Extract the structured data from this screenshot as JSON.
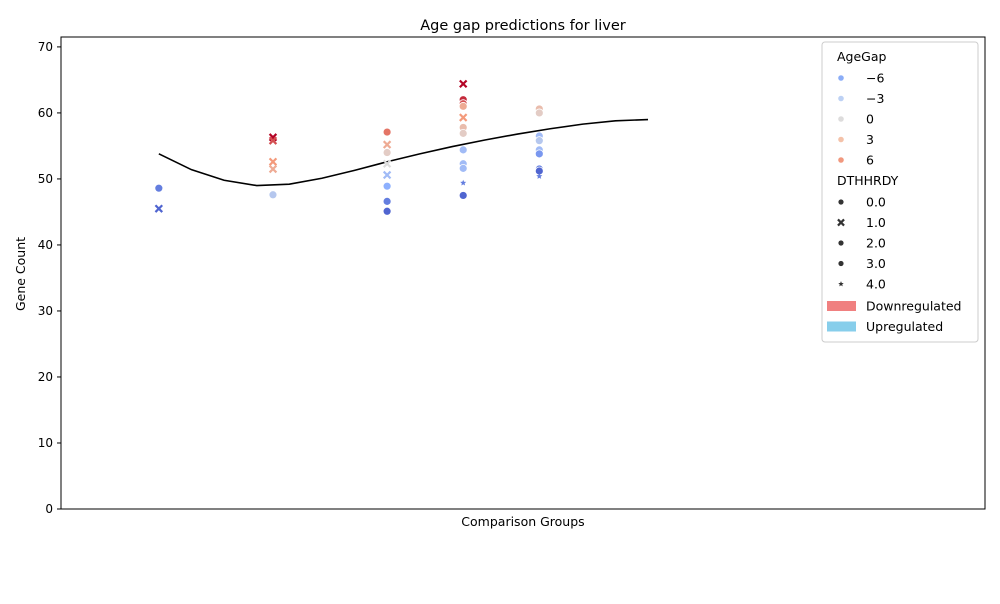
{
  "chart_data": {
    "type": "scatter",
    "title": "Age gap predictions for liver",
    "xlabel": "Comparison Groups",
    "ylabel": "Gene Count",
    "xlim": [
      0,
      8.5
    ],
    "ylim": [
      0,
      71.5
    ],
    "yticks": [
      0,
      10,
      20,
      30,
      40,
      50,
      60,
      70
    ],
    "grid": false,
    "legend": {
      "placement": "upper-right",
      "hue_title": "AgeGap",
      "hue_entries": [
        {
          "label": "−6",
          "value": -6,
          "color": "#8badf7"
        },
        {
          "label": "−3",
          "value": -3,
          "color": "#bdd1f4"
        },
        {
          "label": "0",
          "value": 0,
          "color": "#dddcdc"
        },
        {
          "label": "3",
          "value": 3,
          "color": "#f4c2a9"
        },
        {
          "label": "6",
          "value": 6,
          "color": "#f1987e"
        }
      ],
      "style_title": "DTHHRDY",
      "style_entries": [
        {
          "label": "0.0",
          "marker": "circle"
        },
        {
          "label": "1.0",
          "marker": "x"
        },
        {
          "label": "2.0",
          "marker": "circle"
        },
        {
          "label": "3.0",
          "marker": "circle"
        },
        {
          "label": "4.0",
          "marker": "star"
        }
      ],
      "patch_entries": [
        {
          "label": "Downregulated",
          "color": "#f08080"
        },
        {
          "label": "Upregulated",
          "color": "#87ceeb"
        }
      ]
    },
    "colormap_range": [
      -8,
      8
    ],
    "trend_line": {
      "color": "#000000",
      "x": [
        0.9,
        1.2,
        1.5,
        1.8,
        2.1,
        2.4,
        2.7,
        3.0,
        3.3,
        3.6,
        3.9,
        4.2,
        4.5,
        4.8,
        5.1,
        5.4
      ],
      "y": [
        53.8,
        51.4,
        49.8,
        49.0,
        49.2,
        50.1,
        51.3,
        52.6,
        53.8,
        54.9,
        55.9,
        56.8,
        57.6,
        58.3,
        58.8,
        59.0
      ]
    },
    "points": [
      {
        "x": 0.9,
        "y": 48.6,
        "agegap": -6,
        "marker": "circle"
      },
      {
        "x": 0.9,
        "y": 45.5,
        "agegap": -7,
        "marker": "x"
      },
      {
        "x": 1.95,
        "y": 56.3,
        "agegap": 8,
        "marker": "x"
      },
      {
        "x": 1.95,
        "y": 55.8,
        "agegap": 6,
        "marker": "x"
      },
      {
        "x": 1.95,
        "y": 52.6,
        "agegap": 4,
        "marker": "x"
      },
      {
        "x": 1.95,
        "y": 51.5,
        "agegap": 3,
        "marker": "x"
      },
      {
        "x": 1.95,
        "y": 47.6,
        "agegap": -2,
        "marker": "circle"
      },
      {
        "x": 3.0,
        "y": 57.1,
        "agegap": 5,
        "marker": "circle"
      },
      {
        "x": 3.0,
        "y": 55.2,
        "agegap": 3,
        "marker": "x"
      },
      {
        "x": 3.0,
        "y": 54.0,
        "agegap": 1,
        "marker": "circle"
      },
      {
        "x": 3.0,
        "y": 52.3,
        "agegap": 0,
        "marker": "x"
      },
      {
        "x": 3.0,
        "y": 50.6,
        "agegap": -3,
        "marker": "x"
      },
      {
        "x": 3.0,
        "y": 48.9,
        "agegap": -4,
        "marker": "circle"
      },
      {
        "x": 3.0,
        "y": 46.6,
        "agegap": -6,
        "marker": "circle"
      },
      {
        "x": 3.0,
        "y": 45.1,
        "agegap": -7,
        "marker": "circle"
      },
      {
        "x": 3.7,
        "y": 64.4,
        "agegap": 8,
        "marker": "x"
      },
      {
        "x": 3.7,
        "y": 62.0,
        "agegap": 7,
        "marker": "circle"
      },
      {
        "x": 3.7,
        "y": 61.4,
        "agegap": 6,
        "marker": "circle"
      },
      {
        "x": 3.7,
        "y": 61.0,
        "agegap": 3,
        "marker": "circle"
      },
      {
        "x": 3.7,
        "y": 59.3,
        "agegap": 4,
        "marker": "x"
      },
      {
        "x": 3.7,
        "y": 57.8,
        "agegap": 2,
        "marker": "circle"
      },
      {
        "x": 3.7,
        "y": 56.9,
        "agegap": 1,
        "marker": "circle"
      },
      {
        "x": 3.7,
        "y": 54.4,
        "agegap": -3,
        "marker": "circle"
      },
      {
        "x": 3.7,
        "y": 52.3,
        "agegap": -3,
        "marker": "circle"
      },
      {
        "x": 3.7,
        "y": 51.6,
        "agegap": -3,
        "marker": "circle"
      },
      {
        "x": 3.7,
        "y": 49.4,
        "agegap": -6,
        "marker": "star"
      },
      {
        "x": 3.7,
        "y": 47.5,
        "agegap": -7,
        "marker": "circle"
      },
      {
        "x": 4.4,
        "y": 60.6,
        "agegap": 2,
        "marker": "circle"
      },
      {
        "x": 4.4,
        "y": 60.0,
        "agegap": 1,
        "marker": "circle"
      },
      {
        "x": 4.4,
        "y": 56.5,
        "agegap": -3,
        "marker": "circle"
      },
      {
        "x": 4.4,
        "y": 55.8,
        "agegap": -2,
        "marker": "circle"
      },
      {
        "x": 4.4,
        "y": 54.4,
        "agegap": -3,
        "marker": "circle"
      },
      {
        "x": 4.4,
        "y": 53.8,
        "agegap": -5,
        "marker": "circle"
      },
      {
        "x": 4.4,
        "y": 51.5,
        "agegap": -6,
        "marker": "circle"
      },
      {
        "x": 4.4,
        "y": 51.2,
        "agegap": -7,
        "marker": "circle"
      },
      {
        "x": 4.4,
        "y": 50.4,
        "agegap": -6,
        "marker": "star"
      }
    ]
  }
}
